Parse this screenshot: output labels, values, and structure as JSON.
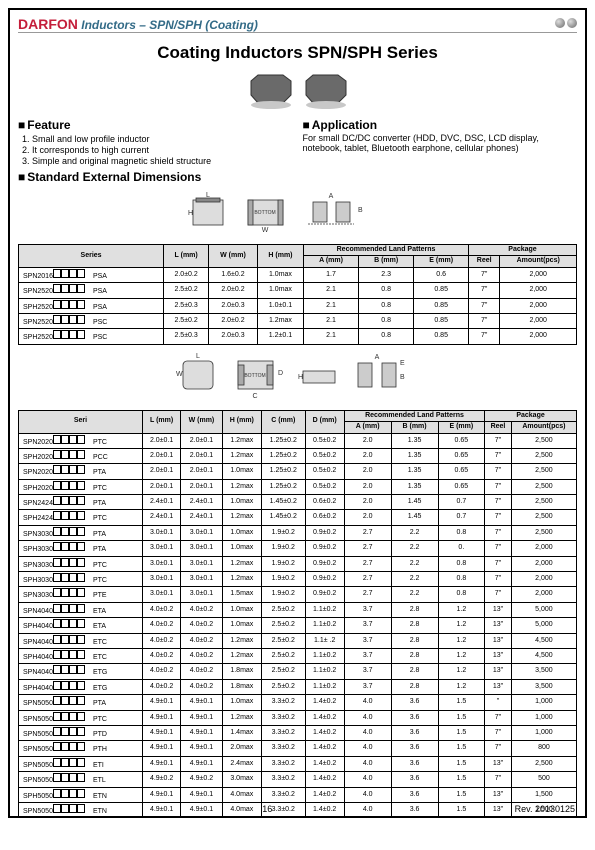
{
  "header": {
    "logo": "DARFON",
    "title": "Inductors – SPN/SPH (Coating)"
  },
  "title": "Coating Inductors SPN/SPH Series",
  "feature": {
    "heading": "Feature",
    "items": [
      "Small and low profile inductor",
      "It corresponds to high current",
      "Simple and original magnetic shield structure"
    ]
  },
  "application": {
    "heading": "Application",
    "text": "For small DC/DC converter (HDD, DVC, DSC, LCD display, notebook, tablet, Bluetooth earphone, cellular phones)"
  },
  "dimensions_heading": "Standard External Dimensions",
  "table1": {
    "headers": {
      "series": "Series",
      "L": "L\n(mm)",
      "W": "W\n(mm)",
      "H": "H\n(mm)",
      "rlp": "Recommended Land Patterns",
      "A": "A\n(mm)",
      "B": "B\n(mm)",
      "E": "E\n(mm)",
      "pkg": "Package",
      "reel": "Reel",
      "amt": "Amount(pcs)"
    },
    "rows": [
      {
        "prefix": "SPN2016",
        "suffix": "PSA",
        "L": "2.0±0.2",
        "W": "1.6±0.2",
        "H": "1.0max",
        "A": "1.7",
        "B": "2.3",
        "E": "0.6",
        "reel": "7\"",
        "amt": "2,000"
      },
      {
        "prefix": "SPN2520",
        "suffix": "PSA",
        "L": "2.5±0.2",
        "W": "2.0±0.2",
        "H": "1.0max",
        "A": "2.1",
        "B": "0.8",
        "E": "0.85",
        "reel": "7\"",
        "amt": "2,000"
      },
      {
        "prefix": "SPH2520",
        "suffix": "PSA",
        "L": "2.5±0.3",
        "W": "2.0±0.3",
        "H": "1.0±0.1",
        "A": "2.1",
        "B": "0.8",
        "E": "0.85",
        "reel": "7\"",
        "amt": "2,000"
      },
      {
        "prefix": "SPN2520",
        "suffix": "PSC",
        "L": "2.5±0.2",
        "W": "2.0±0.2",
        "H": "1.2max",
        "A": "2.1",
        "B": "0.8",
        "E": "0.85",
        "reel": "7\"",
        "amt": "2,000"
      },
      {
        "prefix": "SPH2520",
        "suffix": "PSC",
        "L": "2.5±0.3",
        "W": "2.0±0.3",
        "H": "1.2±0.1",
        "A": "2.1",
        "B": "0.8",
        "E": "0.85",
        "reel": "7\"",
        "amt": "2,000"
      }
    ]
  },
  "table2": {
    "headers": {
      "seri": "Seri",
      "L": "L\n(mm)",
      "W": "W\n(mm)",
      "H": "H\n(mm)",
      "C": "C\n(mm)",
      "D": "D\n(mm)",
      "rlp": "Recommended Land\nPatterns",
      "A": "A\n(mm)",
      "B": "B\n(mm)",
      "E": "E\n(mm)",
      "pkg": "Package",
      "reel": "Reel",
      "amt": "Amount(pcs)"
    },
    "rows": [
      {
        "prefix": "SPN2020",
        "suffix": "PTC",
        "L": "2.0±0.1",
        "W": "2.0±0.1",
        "H": "1.2max",
        "C": "1.25±0.2",
        "D": "0.5±0.2",
        "A": "2.0",
        "B": "1.35",
        "E": "0.65",
        "reel": "7\"",
        "amt": "2,500"
      },
      {
        "prefix": "SPH2020",
        "suffix": "PCC",
        "L": "2.0±0.1",
        "W": "2.0±0.1",
        "H": "1.2max",
        "C": "1.25±0.2",
        "D": "0.5±0.2",
        "A": "2.0",
        "B": "1.35",
        "E": "0.65",
        "reel": "7\"",
        "amt": "2,500"
      },
      {
        "prefix": "SPN2020",
        "suffix": "PTA",
        "L": "2.0±0.1",
        "W": "2.0±0.1",
        "H": "1.0max",
        "C": "1.25±0.2",
        "D": "0.5±0.2",
        "A": "2.0",
        "B": "1.35",
        "E": "0.65",
        "reel": "7\"",
        "amt": "2,500"
      },
      {
        "prefix": "SPH2020",
        "suffix": "PTC",
        "L": "2.0±0.1",
        "W": "2.0±0.1",
        "H": "1.2max",
        "C": "1.25±0.2",
        "D": "0.5±0.2",
        "A": "2.0",
        "B": "1.35",
        "E": "0.65",
        "reel": "7\"",
        "amt": "2,500"
      },
      {
        "prefix": "SPN2424",
        "suffix": "PTA",
        "L": "2.4±0.1",
        "W": "2.4±0.1",
        "H": "1.0max",
        "C": "1.45±0.2",
        "D": "0.6±0.2",
        "A": "2.0",
        "B": "1.45",
        "E": "0.7",
        "reel": "7\"",
        "amt": "2,500"
      },
      {
        "prefix": "SPH2424",
        "suffix": "PTC",
        "L": "2.4±0.1",
        "W": "2.4±0.1",
        "H": "1.2max",
        "C": "1.45±0.2",
        "D": "0.6±0.2",
        "A": "2.0",
        "B": "1.45",
        "E": "0.7",
        "reel": "7\"",
        "amt": "2,500"
      },
      {
        "prefix": "SPN3030",
        "suffix": "PTA",
        "L": "3.0±0.1",
        "W": "3.0±0.1",
        "H": "1.0max",
        "C": "1.9±0.2",
        "D": "0.9±0.2",
        "A": "2.7",
        "B": "2.2",
        "E": "0.8",
        "reel": "7\"",
        "amt": "2,500"
      },
      {
        "prefix": "SPH3030",
        "suffix": "PTA",
        "L": "3.0±0.1",
        "W": "3.0±0.1",
        "H": "1.0max",
        "C": "1.9±0.2",
        "D": "0.9±0.2",
        "A": "2.7",
        "B": "2.2",
        "E": "0.",
        "reel": "7\"",
        "amt": "2,000"
      },
      {
        "prefix": "SPN3030",
        "suffix": "PTC",
        "L": "3.0±0.1",
        "W": "3.0±0.1",
        "H": "1.2max",
        "C": "1.9±0.2",
        "D": "0.9±0.2",
        "A": "2.7",
        "B": "2.2",
        "E": "0.8",
        "reel": "7\"",
        "amt": "2,000"
      },
      {
        "prefix": "SPH3030",
        "suffix": "PTC",
        "L": "3.0±0.1",
        "W": "3.0±0.1",
        "H": "1.2max",
        "C": "1.9±0.2",
        "D": "0.9±0.2",
        "A": "2.7",
        "B": "2.2",
        "E": "0.8",
        "reel": "7\"",
        "amt": "2,000"
      },
      {
        "prefix": "SPN3030",
        "suffix": "PTE",
        "L": "3.0±0.1",
        "W": "3.0±0.1",
        "H": "1.5max",
        "C": "1.9±0.2",
        "D": "0.9±0.2",
        "A": "2.7",
        "B": "2.2",
        "E": "0.8",
        "reel": "7\"",
        "amt": "2,000"
      },
      {
        "prefix": "SPN4040",
        "suffix": "ETA",
        "L": "4.0±0.2",
        "W": "4.0±0.2",
        "H": "1.0max",
        "C": "2.5±0.2",
        "D": "1.1±0.2",
        "A": "3.7",
        "B": "2.8",
        "E": "1.2",
        "reel": "13\"",
        "amt": "5,000"
      },
      {
        "prefix": "SPH4040",
        "suffix": "ETA",
        "L": "4.0±0.2",
        "W": "4.0±0.2",
        "H": "1.0max",
        "C": "2.5±0.2",
        "D": "1.1±0.2",
        "A": "3.7",
        "B": "2.8",
        "E": "1.2",
        "reel": "13\"",
        "amt": "5,000"
      },
      {
        "prefix": "SPN4040",
        "suffix": "ETC",
        "L": "4.0±0.2",
        "W": "4.0±0.2",
        "H": "1.2max",
        "C": "2.5±0.2",
        "D": "1.1± .2",
        "A": "3.7",
        "B": "2.8",
        "E": "1.2",
        "reel": "13\"",
        "amt": "4,500"
      },
      {
        "prefix": "SPH4040",
        "suffix": "ETC",
        "L": "4.0±0.2",
        "W": "4.0±0.2",
        "H": "1.2max",
        "C": "2.5±0.2",
        "D": "1.1±0.2",
        "A": "3.7",
        "B": "2.8",
        "E": "1.2",
        "reel": "13\"",
        "amt": "4,500"
      },
      {
        "prefix": "SPN4040",
        "suffix": "ETG",
        "L": "4.0±0.2",
        "W": "4.0±0.2",
        "H": "1.8max",
        "C": "2.5±0.2",
        "D": "1.1±0.2",
        "A": "3.7",
        "B": "2.8",
        "E": "1.2",
        "reel": "13\"",
        "amt": "3,500"
      },
      {
        "prefix": "SPH4040",
        "suffix": "ETG",
        "L": "4.0±0.2",
        "W": "4.0±0.2",
        "H": "1.8max",
        "C": "2.5±0.2",
        "D": "1.1±0.2",
        "A": "3.7",
        "B": "2.8",
        "E": "1.2",
        "reel": "13\"",
        "amt": "3,500"
      },
      {
        "prefix": "SPN5050",
        "suffix": "PTA",
        "L": "4.9±0.1",
        "W": "4.9±0.1",
        "H": "1.0max",
        "C": "3.3±0.2",
        "D": "1.4±0.2",
        "A": "4.0",
        "B": "3.6",
        "E": "1.5",
        "reel": "  \"",
        "amt": "1,000"
      },
      {
        "prefix": "SPN5050",
        "suffix": "PTC",
        "L": "4.9±0.1",
        "W": "4.9±0.1",
        "H": "1.2max",
        "C": "3.3±0.2",
        "D": "1.4±0.2",
        "A": "4.0",
        "B": "3.6",
        "E": "1.5",
        "reel": "7\"",
        "amt": "1,000"
      },
      {
        "prefix": "SPN5050",
        "suffix": "PTD",
        "L": "4.9±0.1",
        "W": "4.9±0.1",
        "H": "1.4max",
        "C": "3.3±0.2",
        "D": "1.4±0.2",
        "A": "4.0",
        "B": "3.6",
        "E": "1.5",
        "reel": "7\"",
        "amt": "1,000"
      },
      {
        "prefix": "SPN5050",
        "suffix": "PTH",
        "L": "4.9±0.1",
        "W": "4.9±0.1",
        "H": "2.0max",
        "C": "3.3±0.2",
        "D": "1.4±0.2",
        "A": "4.0",
        "B": "3.6",
        "E": "1.5",
        "reel": "7\"",
        "amt": "800"
      },
      {
        "prefix": "SPN5050",
        "suffix": "ETI",
        "L": "4.9±0.1",
        "W": "4.9±0.1",
        "H": "2.4max",
        "C": "3.3±0.2",
        "D": "1.4±0.2",
        "A": "4.0",
        "B": "3.6",
        "E": "1.5",
        "reel": "13\"",
        "amt": "2,500"
      },
      {
        "prefix": "SPN5050",
        "suffix": "ETL",
        "L": "4.9±0.2",
        "W": "4.9±0.2",
        "H": "3.0max",
        "C": "3.3±0.2",
        "D": "1.4±0.2",
        "A": "4.0",
        "B": "3.6",
        "E": "1.5",
        "reel": "7\"",
        "amt": "500"
      },
      {
        "prefix": "SPH5050",
        "suffix": "ETN",
        "L": "4.9±0.1",
        "W": "4.9±0.1",
        "H": "4.0max",
        "C": "3.3±0.2",
        "D": "1.4±0.2",
        "A": "4.0",
        "B": "3.6",
        "E": "1.5",
        "reel": "13\"",
        "amt": "1,500"
      },
      {
        "prefix": "SPN5050",
        "suffix": "ETN",
        "L": "4.9±0.1",
        "W": "4.9±0.1",
        "H": "4.0max",
        "C": "3.3±0.2",
        "D": "1.4±0.2",
        "A": "4.0",
        "B": "3.6",
        "E": "1.5",
        "reel": "13\"",
        "amt": "1,500"
      }
    ]
  },
  "footer": {
    "page": "16",
    "rev": "Rev. 20130125"
  }
}
